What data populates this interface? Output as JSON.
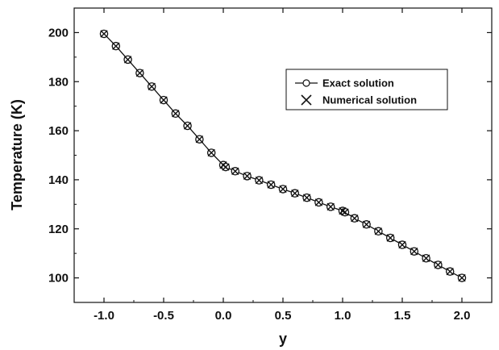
{
  "chart_data": {
    "type": "line",
    "xlabel": "y",
    "ylabel": "Temperature (K)",
    "xlim": [
      -1.25,
      2.25
    ],
    "ylim": [
      90,
      210
    ],
    "x_ticks": [
      "-1.0",
      "-0.5",
      "0.0",
      "0.5",
      "1.0",
      "1.5",
      "2.0"
    ],
    "y_ticks": [
      "100",
      "120",
      "140",
      "160",
      "180",
      "200"
    ],
    "grid": false,
    "legend_position": "top-right",
    "series": [
      {
        "name": "Exact solution",
        "marker": "circle",
        "line": true,
        "x": [
          -1.0,
          -0.9,
          -0.8,
          -0.7,
          -0.6,
          -0.5,
          -0.4,
          -0.3,
          -0.2,
          -0.1,
          0.0,
          0.02,
          0.1,
          0.2,
          0.3,
          0.4,
          0.5,
          0.6,
          0.7,
          0.8,
          0.9,
          1.0,
          1.02,
          1.1,
          1.2,
          1.3,
          1.4,
          1.5,
          1.6,
          1.7,
          1.8,
          1.9,
          2.0
        ],
        "y": [
          199.5,
          194.5,
          189.0,
          183.5,
          178.0,
          172.5,
          167.0,
          162.0,
          156.5,
          151.0,
          146.0,
          145.2,
          143.5,
          141.5,
          139.8,
          138.0,
          136.2,
          134.5,
          132.7,
          130.8,
          129.0,
          127.3,
          126.8,
          124.3,
          121.8,
          119.0,
          116.3,
          113.5,
          110.8,
          108.0,
          105.3,
          102.6,
          100.0
        ]
      },
      {
        "name": "Numerical solution",
        "marker": "cross",
        "line": false,
        "x": [
          -1.0,
          -0.9,
          -0.8,
          -0.7,
          -0.6,
          -0.5,
          -0.4,
          -0.3,
          -0.2,
          -0.1,
          0.0,
          0.02,
          0.1,
          0.2,
          0.3,
          0.4,
          0.5,
          0.6,
          0.7,
          0.8,
          0.9,
          1.0,
          1.02,
          1.1,
          1.2,
          1.3,
          1.4,
          1.5,
          1.6,
          1.7,
          1.8,
          1.9,
          2.0
        ],
        "y": [
          199.5,
          194.5,
          189.0,
          183.5,
          178.0,
          172.5,
          167.0,
          162.0,
          156.5,
          151.0,
          146.0,
          145.2,
          143.5,
          141.5,
          139.8,
          138.0,
          136.2,
          134.5,
          132.7,
          130.8,
          129.0,
          127.3,
          126.8,
          124.3,
          121.8,
          119.0,
          116.3,
          113.5,
          110.8,
          108.0,
          105.3,
          102.6,
          100.0
        ]
      }
    ]
  }
}
